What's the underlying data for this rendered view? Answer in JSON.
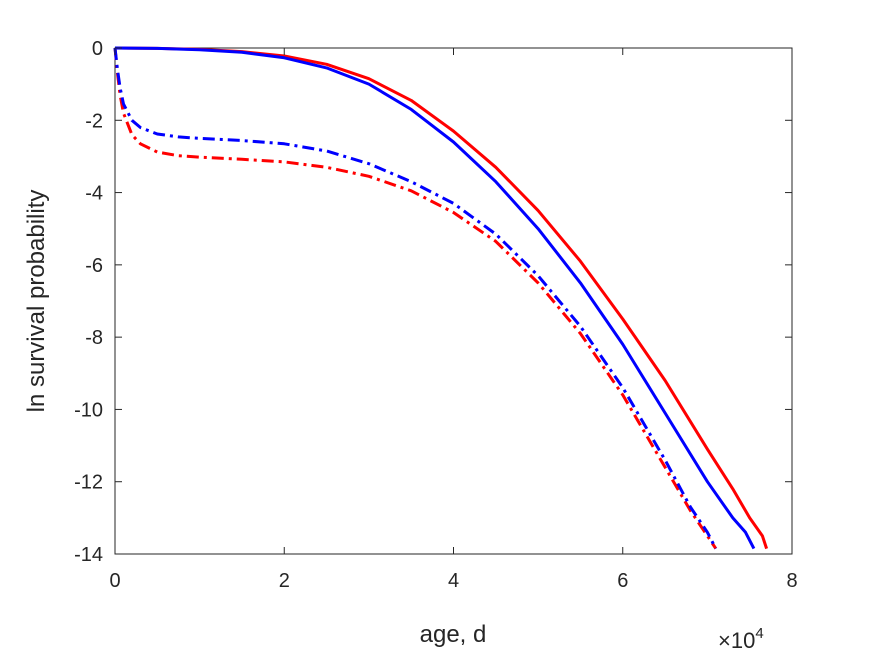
{
  "chart_data": {
    "type": "line",
    "title": "",
    "xlabel": "age, d",
    "ylabel": "ln survival probability",
    "x_exponent_label": {
      "base": "×10",
      "power": "4"
    },
    "xlim": [
      0,
      80000
    ],
    "ylim": [
      -14,
      0
    ],
    "x_ticks": [
      0,
      20000,
      40000,
      60000,
      80000
    ],
    "x_tick_labels": [
      "0",
      "2",
      "4",
      "6",
      "8"
    ],
    "y_ticks": [
      0,
      -2,
      -4,
      -6,
      -8,
      -10,
      -12,
      -14
    ],
    "y_tick_labels": [
      "0",
      "-2",
      "-4",
      "-6",
      "-8",
      "-10",
      "-12",
      "-14"
    ],
    "grid": false,
    "legend": "none",
    "series": [
      {
        "color": "#ff0000",
        "style": "solid",
        "x": [
          0,
          5000,
          10000,
          15000,
          20000,
          25000,
          30000,
          35000,
          40000,
          45000,
          50000,
          55000,
          60000,
          65000,
          70000,
          73000,
          75000,
          76500,
          77000
        ],
        "y": [
          0,
          -0.01,
          -0.04,
          -0.1,
          -0.22,
          -0.45,
          -0.85,
          -1.45,
          -2.3,
          -3.3,
          -4.5,
          -5.9,
          -7.5,
          -9.2,
          -11.1,
          -12.2,
          -13.0,
          -13.5,
          -13.85
        ]
      },
      {
        "color": "#0000ff",
        "style": "solid",
        "x": [
          0,
          5000,
          10000,
          15000,
          20000,
          25000,
          30000,
          35000,
          40000,
          45000,
          50000,
          55000,
          60000,
          65000,
          70000,
          73000,
          74500,
          75500
        ],
        "y": [
          0,
          -0.01,
          -0.05,
          -0.12,
          -0.27,
          -0.55,
          -1.0,
          -1.7,
          -2.6,
          -3.7,
          -5.0,
          -6.5,
          -8.2,
          -10.1,
          -12.0,
          -13.0,
          -13.4,
          -13.85
        ]
      },
      {
        "color": "#ff0000",
        "style": "dashdot",
        "x": [
          0,
          300,
          600,
          1000,
          2000,
          3000,
          5000,
          7500,
          10000,
          15000,
          20000,
          25000,
          30000,
          35000,
          40000,
          45000,
          50000,
          55000,
          60000,
          65000,
          68000,
          70000,
          71000
        ],
        "y": [
          0,
          -0.7,
          -1.3,
          -1.8,
          -2.4,
          -2.65,
          -2.88,
          -2.98,
          -3.02,
          -3.08,
          -3.15,
          -3.3,
          -3.55,
          -3.95,
          -4.55,
          -5.35,
          -6.5,
          -7.9,
          -9.6,
          -11.6,
          -12.8,
          -13.5,
          -13.85
        ]
      },
      {
        "color": "#0000ff",
        "style": "dashdot",
        "x": [
          0,
          300,
          600,
          1000,
          2000,
          3000,
          5000,
          7500,
          10000,
          15000,
          20000,
          25000,
          30000,
          35000,
          40000,
          45000,
          50000,
          55000,
          60000,
          65000,
          68000,
          70000,
          71000
        ],
        "y": [
          0,
          -0.6,
          -1.1,
          -1.55,
          -2.0,
          -2.2,
          -2.38,
          -2.46,
          -2.5,
          -2.56,
          -2.65,
          -2.85,
          -3.2,
          -3.7,
          -4.3,
          -5.15,
          -6.3,
          -7.7,
          -9.4,
          -11.4,
          -12.7,
          -13.4,
          -13.85
        ]
      }
    ]
  }
}
